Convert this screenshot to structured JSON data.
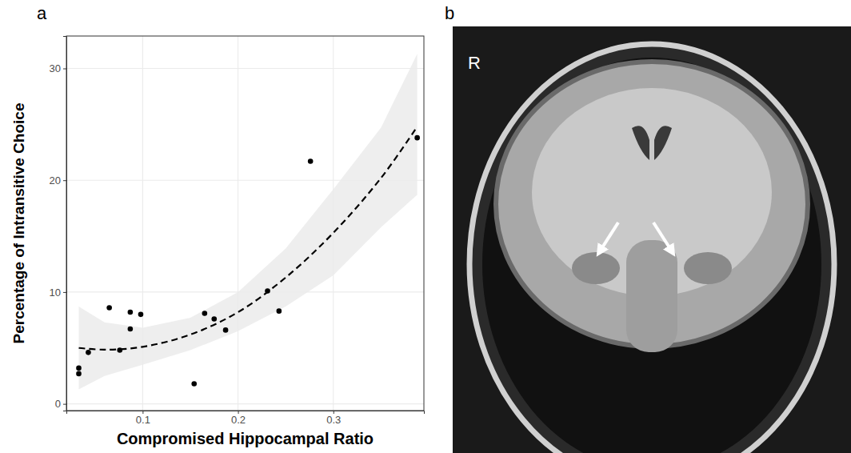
{
  "chart_data": {
    "type": "scatter",
    "panel_label": "a",
    "x_label": "Compromised Hippocampal Ratio",
    "y_label": "Percentage of Intransitive Choice",
    "xlim": [
      0.02,
      0.395
    ],
    "ylim": [
      -0.6,
      32.9
    ],
    "xticks": [
      0.1,
      0.2,
      0.3
    ],
    "yticks": [
      0,
      10,
      20,
      30
    ],
    "grid": true,
    "series": [
      {
        "type": "scatter",
        "color": "#000000",
        "marker": "circle",
        "x": [
          0.033,
          0.033,
          0.043,
          0.065,
          0.076,
          0.087,
          0.087,
          0.098,
          0.154,
          0.165,
          0.175,
          0.187,
          0.231,
          0.243,
          0.276,
          0.388
        ],
        "values": [
          3.2,
          2.7,
          4.6,
          8.6,
          4.8,
          8.2,
          6.7,
          8.0,
          1.8,
          8.1,
          7.6,
          6.6,
          10.1,
          8.3,
          21.7,
          23.8
        ]
      },
      {
        "type": "line",
        "color": "#000000",
        "line_style": "dashed",
        "x": [
          0.033,
          0.06,
          0.1,
          0.15,
          0.2,
          0.25,
          0.3,
          0.35,
          0.388
        ],
        "values": [
          5.0,
          4.85,
          5.1,
          6.2,
          8.2,
          11.3,
          15.3,
          20.2,
          24.8
        ]
      }
    ],
    "confidence_band": {
      "color": "#ebebeb",
      "x": [
        0.033,
        0.06,
        0.1,
        0.15,
        0.2,
        0.25,
        0.3,
        0.35,
        0.388
      ],
      "lower": [
        1.3,
        2.5,
        3.5,
        4.8,
        6.5,
        8.7,
        11.5,
        15.8,
        18.7
      ],
      "upper": [
        8.7,
        7.3,
        6.8,
        7.7,
        10.0,
        13.9,
        19.2,
        24.7,
        31.3
      ]
    }
  },
  "panel_b": {
    "panel_label": "b",
    "side_label": "R"
  }
}
